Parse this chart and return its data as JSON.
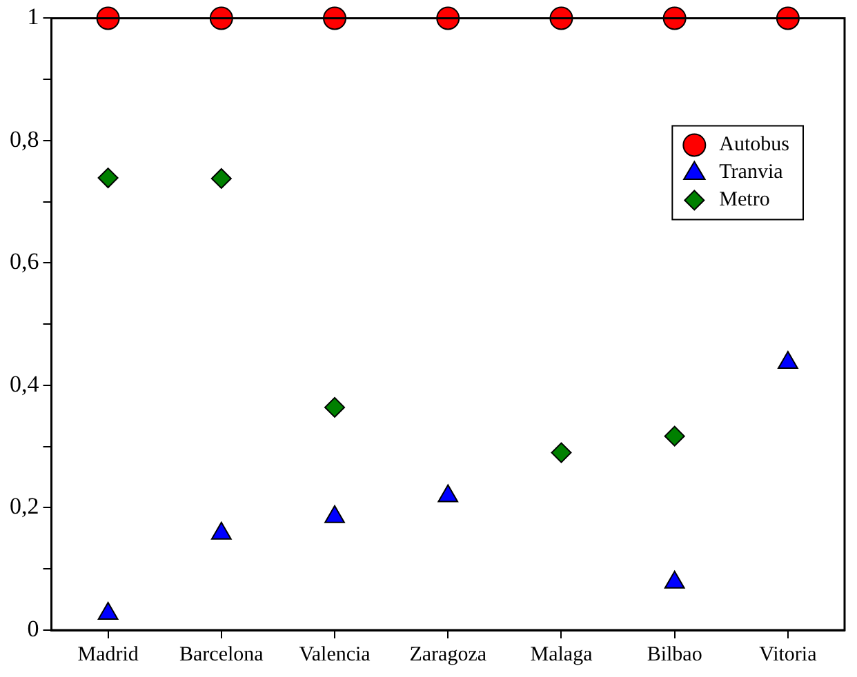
{
  "chart_data": {
    "type": "scatter",
    "categories": [
      "Madrid",
      "Barcelona",
      "Valencia",
      "Zaragoza",
      "Malaga",
      "Bilbao",
      "Vitoria"
    ],
    "series": [
      {
        "name": "Autobus",
        "color": "#ff0000",
        "marker": "circle",
        "values": [
          1,
          1,
          1,
          1,
          1,
          1,
          1
        ]
      },
      {
        "name": "Tranvia",
        "color": "#0000ff",
        "marker": "triangle",
        "values": [
          0.027,
          0.158,
          0.185,
          0.219,
          null,
          0.078,
          0.437
        ]
      },
      {
        "name": "Metro",
        "color": "#008000",
        "marker": "diamond",
        "values": [
          0.739,
          0.738,
          0.364,
          null,
          0.29,
          0.317,
          null
        ]
      }
    ],
    "ylim": [
      0,
      1
    ],
    "yticks": [
      0,
      {
        "value": 0.1,
        "label": null
      },
      {
        "value": 0.2,
        "label": "0,2"
      },
      {
        "value": 0.3,
        "label": null
      },
      {
        "value": 0.4,
        "label": "0,4"
      },
      {
        "value": 0.5,
        "label": null
      },
      {
        "value": 0.6,
        "label": "0,6"
      },
      {
        "value": 0.7,
        "label": null
      },
      {
        "value": 0.8,
        "label": "0,8"
      },
      {
        "value": 0.9,
        "label": null
      },
      1
    ],
    "legend": "top right"
  }
}
